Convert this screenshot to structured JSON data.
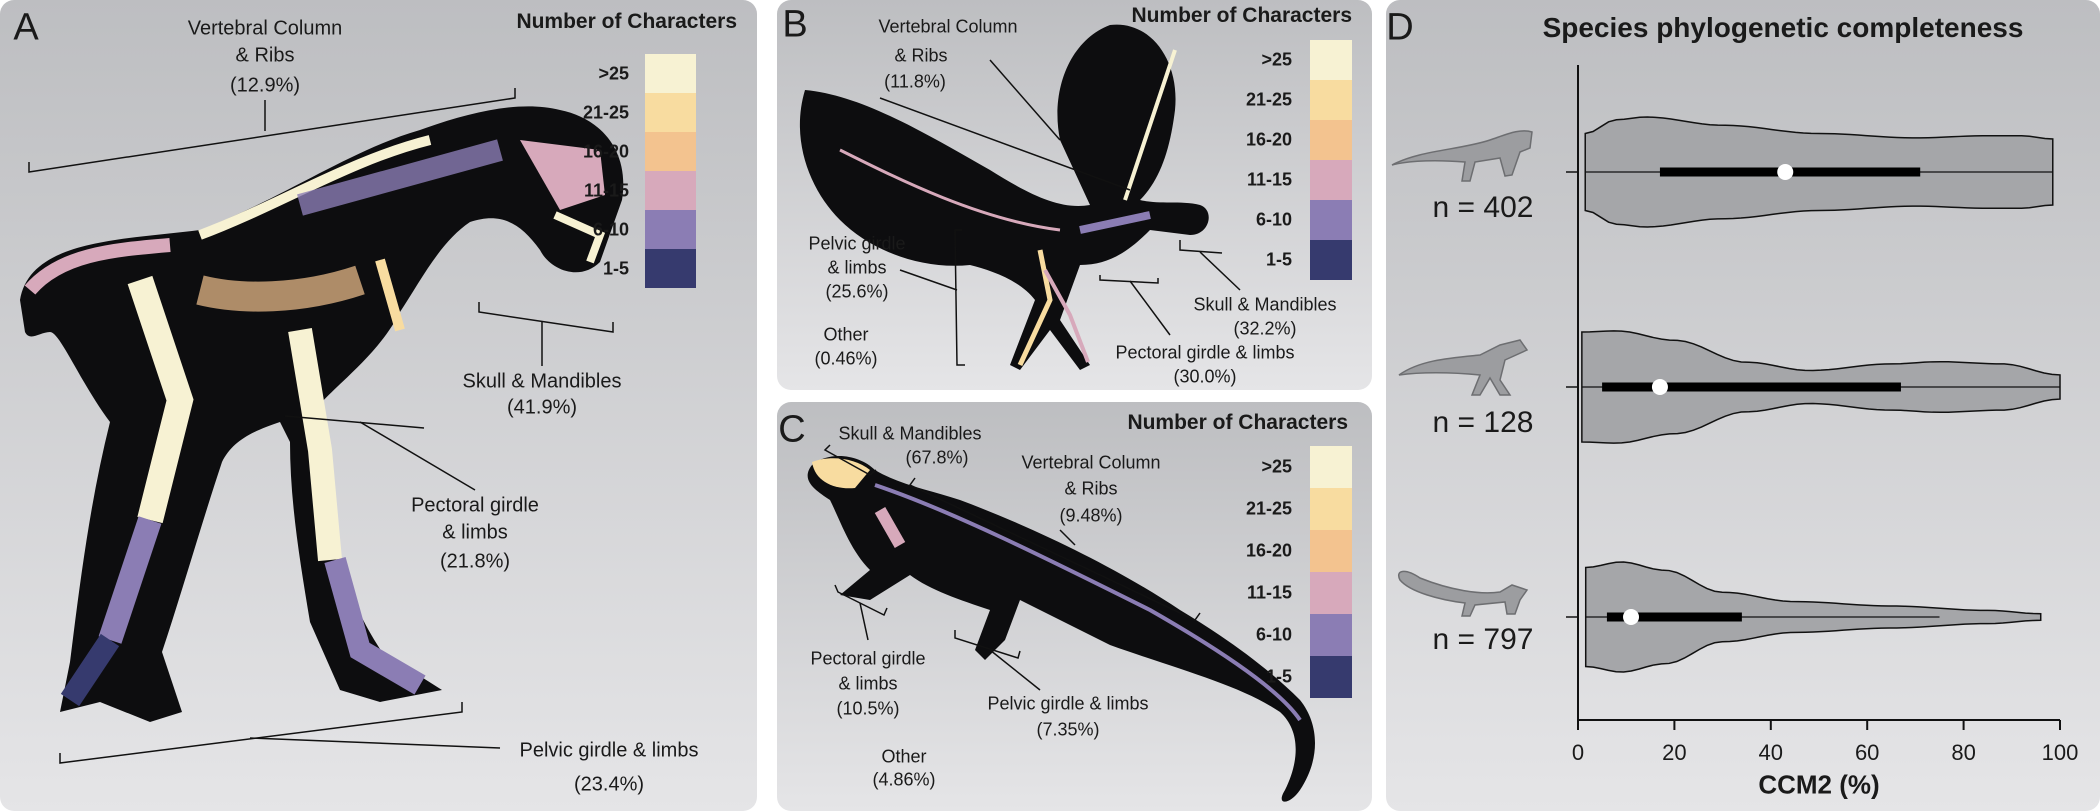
{
  "legend": {
    "title": "Number of Characters",
    "items": [
      {
        "label": ">25",
        "color": "#f7f2d3"
      },
      {
        "label": "21-25",
        "color": "#f8dca0"
      },
      {
        "label": "16-20",
        "color": "#f3c38f"
      },
      {
        "label": "11-15",
        "color": "#d7a9bb"
      },
      {
        "label": "6-10",
        "color": "#8b7db4"
      },
      {
        "label": "1-5",
        "color": "#363a6e"
      }
    ]
  },
  "panelA": {
    "letter": "A",
    "vert": [
      "Vertebral Column",
      "& Ribs",
      "(12.9%)"
    ],
    "skull": [
      "Skull & Mandibles",
      "(41.9%)"
    ],
    "pect": [
      "Pectoral girdle",
      "& limbs",
      "(21.8%)"
    ],
    "pelv": [
      "Pelvic girdle & limbs",
      "(23.4%)"
    ]
  },
  "panelB": {
    "letter": "B",
    "vert": [
      "Vertebral Column",
      "& Ribs",
      "(11.8%)"
    ],
    "pelv": [
      "Pelvic girdle",
      "& limbs",
      "(25.6%)"
    ],
    "other": [
      "Other",
      "(0.46%)"
    ],
    "skull": [
      "Skull & Mandibles",
      "(32.2%)"
    ],
    "pect": [
      "Pectoral girdle & limbs",
      "(30.0%)"
    ]
  },
  "panelC": {
    "letter": "C",
    "skull": [
      "Skull & Mandibles",
      "(67.8%)"
    ],
    "vert": [
      "Vertebral Column",
      "& Ribs",
      "(9.48%)"
    ],
    "pect": [
      "Pectoral girdle",
      "& limbs",
      "(10.5%)"
    ],
    "pelv": [
      "Pelvic girdle & limbs",
      "(7.35%)"
    ],
    "other": [
      "Other",
      "(4.86%)"
    ]
  },
  "chart_data": {
    "type": "violin",
    "letter": "D",
    "title": "Species phylogenetic completeness",
    "xlabel": "CCM2 (%)",
    "xlim": [
      0,
      100
    ],
    "xticks": [
      "0",
      "20",
      "40",
      "60",
      "80",
      "100"
    ],
    "grid": false,
    "violin_color": "#a5a6a9",
    "series": [
      {
        "n_label": "n = 402",
        "min": 1.5,
        "max": 98.5,
        "q1": 17,
        "median": 43,
        "q3": 71,
        "whisker_low": 1.5,
        "whisker_high": 98.5,
        "density_profile": [
          [
            1.5,
            0.7
          ],
          [
            8,
            0.95
          ],
          [
            14,
            1.0
          ],
          [
            30,
            0.85
          ],
          [
            50,
            0.7
          ],
          [
            70,
            0.62
          ],
          [
            85,
            0.66
          ],
          [
            92,
            0.66
          ],
          [
            98.5,
            0.6
          ]
        ]
      },
      {
        "n_label": "n = 128",
        "min": 0.8,
        "max": 100,
        "q1": 5,
        "median": 17,
        "q3": 67,
        "whisker_low": 0.8,
        "whisker_high": 100,
        "density_profile": [
          [
            0.8,
            1.0
          ],
          [
            8,
            1.02
          ],
          [
            20,
            0.85
          ],
          [
            35,
            0.45
          ],
          [
            48,
            0.3
          ],
          [
            65,
            0.42
          ],
          [
            75,
            0.46
          ],
          [
            88,
            0.42
          ],
          [
            100,
            0.22
          ]
        ]
      },
      {
        "n_label": "n = 797",
        "min": 1.6,
        "max": 96,
        "q1": 6,
        "median": 11,
        "q3": 34,
        "whisker_low": 1.6,
        "whisker_high": 75,
        "density_profile": [
          [
            1.6,
            0.9
          ],
          [
            9,
            1.0
          ],
          [
            18,
            0.85
          ],
          [
            30,
            0.45
          ],
          [
            45,
            0.28
          ],
          [
            65,
            0.2
          ],
          [
            85,
            0.12
          ],
          [
            96,
            0.06
          ]
        ]
      }
    ]
  }
}
